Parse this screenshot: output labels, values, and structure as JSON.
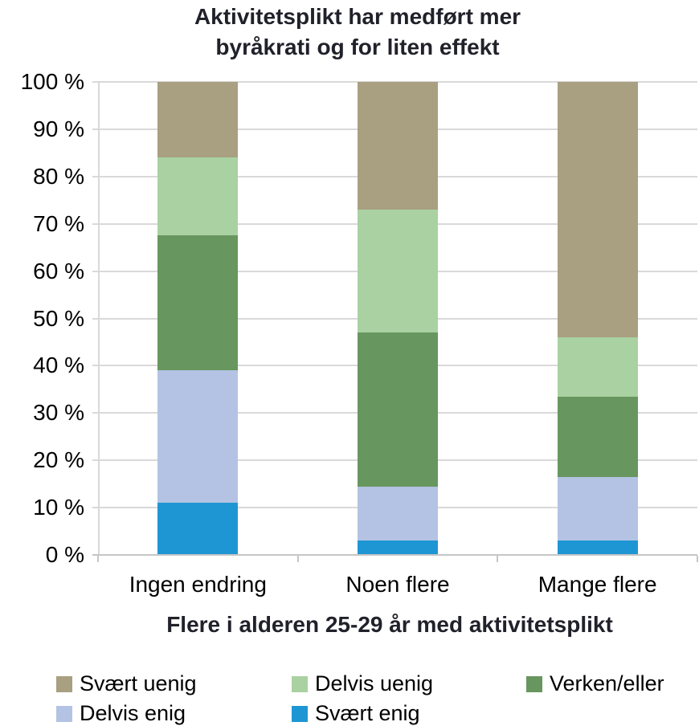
{
  "chart_data": {
    "type": "bar",
    "stacked": true,
    "title": "Aktivitetsplikt har medført mer byråkrati og for liten effekt",
    "title_lines": [
      "Aktivitetsplikt har medført mer",
      "byråkrati og for liten effekt"
    ],
    "xlabel": "Flere i alderen 25-29 år med aktivitetsplikt",
    "ylabel": "",
    "ylim": [
      0,
      100
    ],
    "grid": true,
    "legend_position": "bottom",
    "ytick_labels": [
      "0 %",
      "10 %",
      "20 %",
      "30 %",
      "40 %",
      "50 %",
      "60 %",
      "70 %",
      "80 %",
      "90 %",
      "100 %"
    ],
    "categories": [
      "Ingen endring",
      "Noen flere",
      "Mange flere"
    ],
    "series": [
      {
        "name": "Svært enig",
        "color": "#1f96d4",
        "values": [
          11,
          3,
          3
        ]
      },
      {
        "name": "Delvis enig",
        "color": "#b4c3e3",
        "values": [
          28,
          11.5,
          13.5
        ]
      },
      {
        "name": "Verken/eller",
        "color": "#68965f",
        "values": [
          28.5,
          32.5,
          17
        ]
      },
      {
        "name": "Delvis uenig",
        "color": "#a9d1a1",
        "values": [
          16.5,
          26,
          12.5
        ]
      },
      {
        "name": "Svært uenig",
        "color": "#a99f81",
        "values": [
          16,
          27,
          54
        ]
      }
    ],
    "legend_entries": [
      {
        "label": "Svært uenig",
        "color": "#a99f81"
      },
      {
        "label": "Delvis uenig",
        "color": "#a9d1a1"
      },
      {
        "label": "Verken/eller",
        "color": "#68965f"
      },
      {
        "label": "Delvis enig",
        "color": "#b4c3e3"
      },
      {
        "label": "Svært enig",
        "color": "#1f96d4"
      }
    ],
    "colors": {
      "gridline": "#d9d9d9",
      "axis": "#c6c6c6",
      "text": "#000000",
      "title": "#21212b"
    }
  }
}
